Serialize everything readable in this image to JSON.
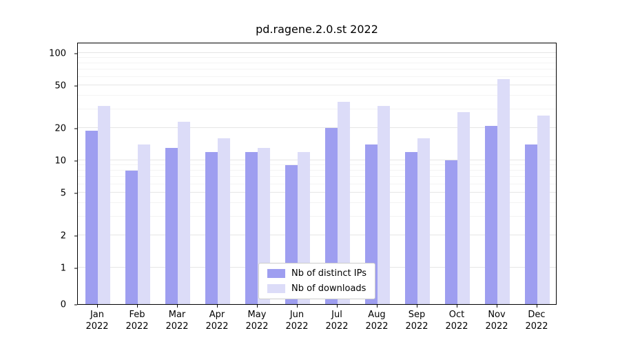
{
  "chart_data": {
    "type": "bar",
    "title": "pd.ragene.2.0.st 2022",
    "categories": [
      "Jan",
      "Feb",
      "Mar",
      "Apr",
      "May",
      "Jun",
      "Jul",
      "Aug",
      "Sep",
      "Oct",
      "Nov",
      "Dec"
    ],
    "year": "2022",
    "series": [
      {
        "name": "Nb of distinct IPs",
        "color": "#9e9ef0",
        "values": [
          19,
          8,
          13,
          12,
          12,
          9,
          20,
          14,
          12,
          10,
          21,
          14
        ]
      },
      {
        "name": "Nb of downloads",
        "color": "#dcdcf8",
        "values": [
          32,
          14,
          23,
          16,
          13,
          12,
          35,
          32,
          16,
          28,
          57,
          26
        ]
      }
    ],
    "yscale": "symlog",
    "ylim": [
      0,
      110
    ],
    "yticks": [
      0,
      1,
      2,
      5,
      10,
      20,
      50,
      100
    ],
    "minor_gridlines": [
      3,
      4,
      6,
      7,
      8,
      9,
      30,
      40,
      60,
      70,
      80,
      90
    ],
    "grid": "on",
    "legend_position": "lower center"
  }
}
